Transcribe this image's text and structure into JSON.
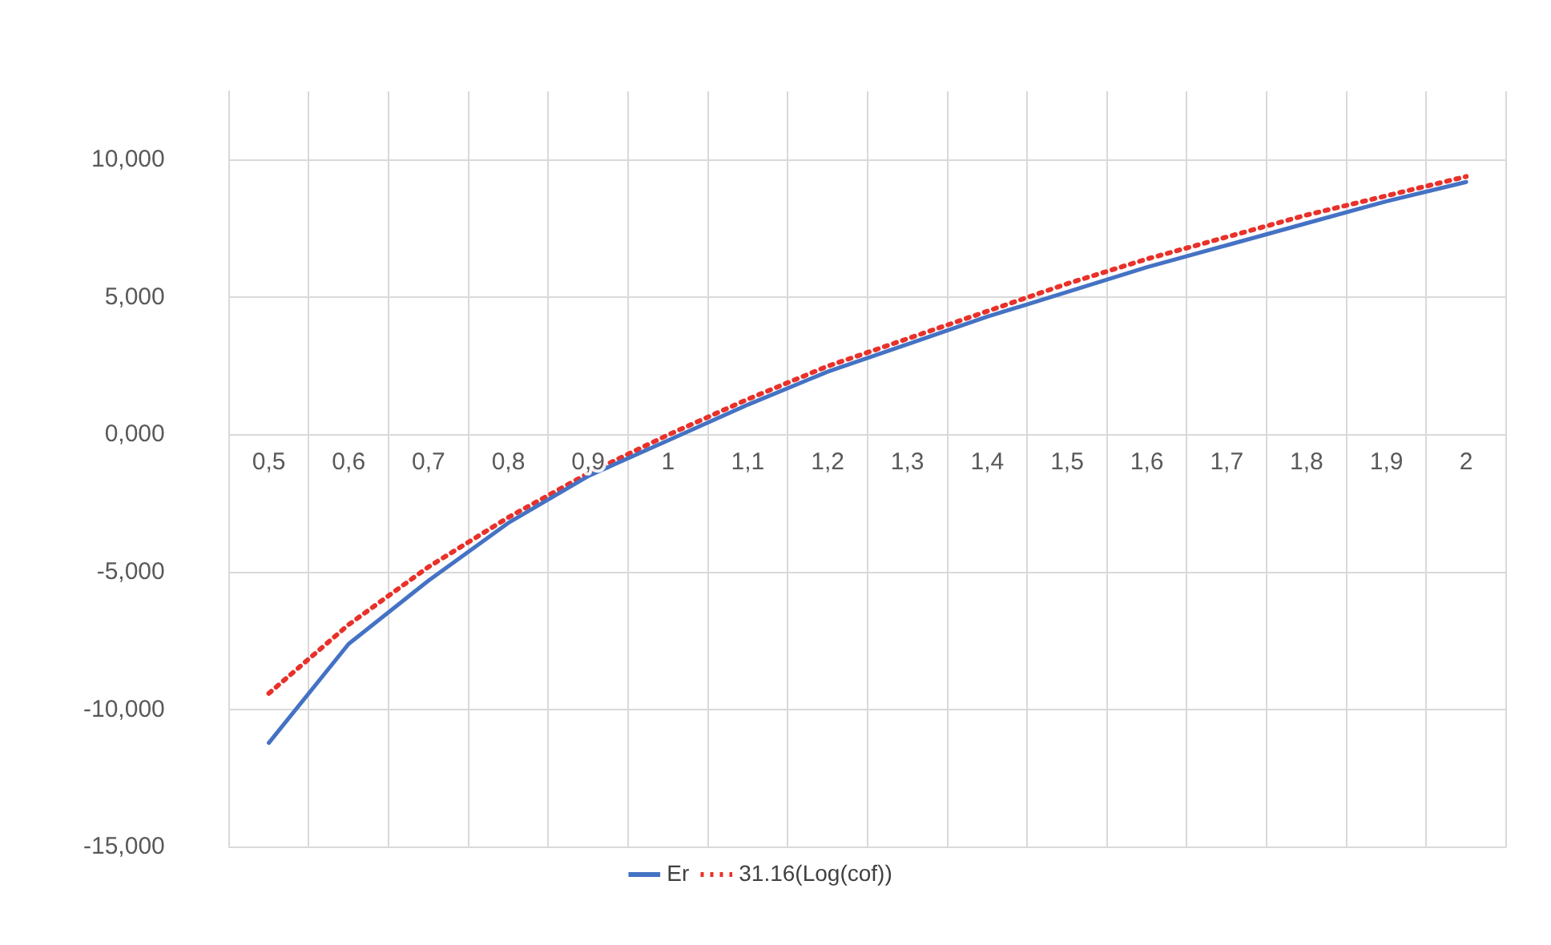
{
  "chart_data": {
    "type": "line",
    "categories": [
      "0,5",
      "0,6",
      "0,7",
      "0,8",
      "0,9",
      "1",
      "1,1",
      "1,2",
      "1,3",
      "1,4",
      "1,5",
      "1,6",
      "1,7",
      "1,8",
      "1,9",
      "2"
    ],
    "series": [
      {
        "name": "Er",
        "color": "#4472c4",
        "line_style": "solid",
        "values": [
          -11.2,
          -7.6,
          -5.3,
          -3.2,
          -1.5,
          -0.2,
          1.1,
          2.3,
          3.3,
          4.3,
          5.2,
          6.1,
          6.9,
          7.7,
          8.5,
          9.2
        ]
      },
      {
        "name": "31.16(Log(cof))",
        "color": "#e8312a",
        "line_style": "dotted",
        "values": [
          -9.4,
          -6.9,
          -4.8,
          -3.0,
          -1.4,
          0,
          1.3,
          2.5,
          3.5,
          4.5,
          5.5,
          6.4,
          7.2,
          8.0,
          8.7,
          9.4
        ]
      }
    ],
    "ylim": [
      -15,
      12.5
    ],
    "yticks": [
      {
        "value": -15,
        "label": "-15,000"
      },
      {
        "value": -10,
        "label": "-10,000"
      },
      {
        "value": -5,
        "label": "-5,000"
      },
      {
        "value": 0,
        "label": "0,000"
      },
      {
        "value": 5,
        "label": "5,000"
      },
      {
        "value": 10,
        "label": "10,000"
      }
    ],
    "grid": true,
    "legend": "bottom",
    "marker": "none"
  }
}
